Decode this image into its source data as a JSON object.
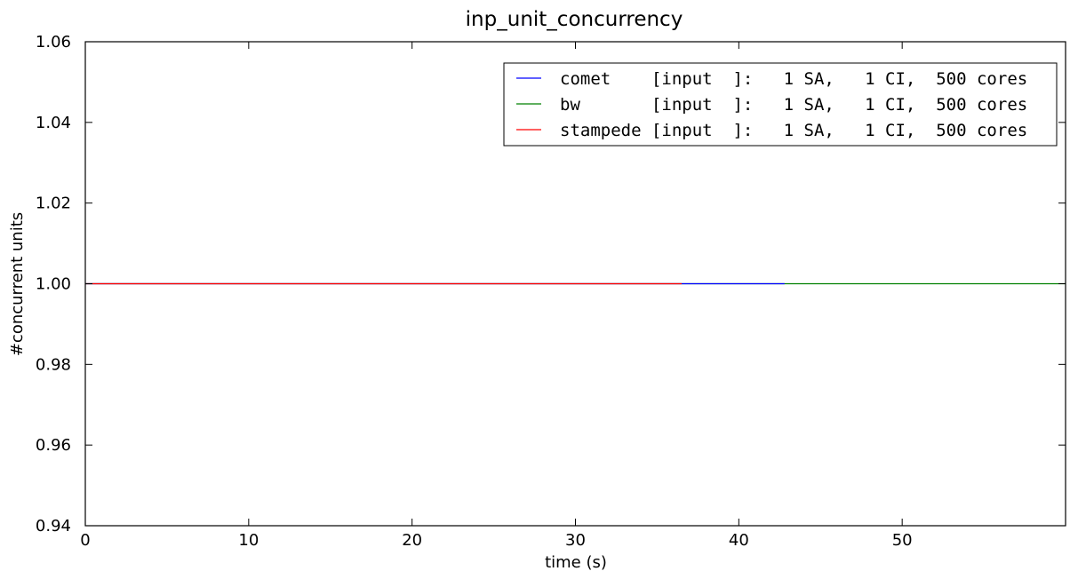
{
  "chart_data": {
    "type": "line",
    "title": "inp_unit_concurrency",
    "xlabel": "time (s)",
    "ylabel": "#concurrent units",
    "xlim": [
      0,
      60
    ],
    "ylim": [
      0.94,
      1.06
    ],
    "xticks": [
      0,
      10,
      20,
      30,
      40,
      50
    ],
    "xtick_labels": [
      "0",
      "10",
      "20",
      "30",
      "40",
      "50"
    ],
    "yticks": [
      0.94,
      0.96,
      0.98,
      1.0,
      1.02,
      1.04,
      1.06
    ],
    "ytick_labels": [
      "0.94",
      "0.96",
      "0.98",
      "1.00",
      "1.02",
      "1.04",
      "1.06"
    ],
    "grid": false,
    "legend_position": "top-right",
    "series": [
      {
        "name": "comet    [input  ]:   1 SA,   1 CI,  500 cores",
        "color": "#0000ff",
        "x": [
          0,
          42.8
        ],
        "y": [
          1.0,
          1.0
        ]
      },
      {
        "name": "bw       [input  ]:   1 SA,   1 CI,  500 cores",
        "color": "#008000",
        "x": [
          0,
          60
        ],
        "y": [
          1.0,
          1.0
        ]
      },
      {
        "name": "stampede [input  ]:   1 SA,   1 CI,  500 cores",
        "color": "#ff0000",
        "x": [
          0,
          36.5
        ],
        "y": [
          1.0,
          1.0
        ]
      }
    ]
  }
}
